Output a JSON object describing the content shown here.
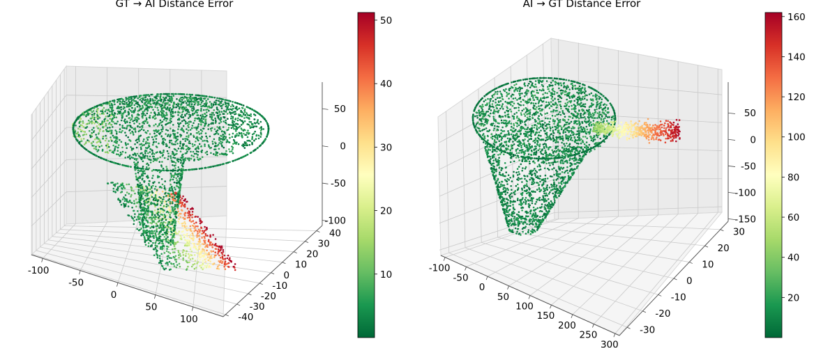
{
  "chart_data": [
    {
      "type": "scatter3d",
      "title": "GT → AI Distance Error",
      "colormap": "RdYlGn_r",
      "colorbar": {
        "min": 0,
        "max": 51.2,
        "ticks": [
          10,
          20,
          30,
          40,
          50
        ]
      },
      "x_ticks": [
        -100,
        -50,
        0,
        50,
        100
      ],
      "y_ticks": [
        -40,
        -30,
        -20,
        -10,
        0,
        10,
        20,
        30,
        40
      ],
      "z_ticks": [
        -100,
        -50,
        0,
        50
      ],
      "xlim": [
        -115,
        140
      ],
      "ylim": [
        -42,
        45
      ],
      "zlim": [
        -150,
        95
      ],
      "grid": true,
      "point_groups": [
        {
          "shape": "mushroom-cap",
          "x_range": [
            -110,
            110
          ],
          "y_range": [
            -30,
            40
          ],
          "z_range": [
            -5,
            60
          ],
          "error_range": [
            0,
            18
          ]
        },
        {
          "shape": "stem",
          "x_range": [
            -20,
            20
          ],
          "y_range": [
            -15,
            15
          ],
          "z_range": [
            -110,
            -5
          ],
          "error_range": [
            0,
            12
          ]
        },
        {
          "shape": "base-ramp",
          "x_range": [
            -20,
            120
          ],
          "y_range": [
            -35,
            35
          ],
          "z_range": [
            -130,
            -100
          ],
          "error_range": [
            0,
            51
          ]
        }
      ]
    },
    {
      "type": "scatter3d",
      "title": "AI → GT Distance Error",
      "colormap": "RdYlGn_r",
      "colorbar": {
        "min": 0,
        "max": 162,
        "ticks": [
          20,
          40,
          60,
          80,
          100,
          120,
          140,
          160
        ]
      },
      "x_ticks": [
        -100,
        -50,
        0,
        50,
        100,
        150,
        200,
        250,
        300
      ],
      "y_ticks": [
        -30,
        -20,
        -10,
        0,
        10,
        20,
        30
      ],
      "z_ticks": [
        -150,
        -100,
        -50,
        0,
        50
      ],
      "xlim": [
        -110,
        310
      ],
      "ylim": [
        -35,
        35
      ],
      "zlim": [
        -160,
        95
      ],
      "grid": true,
      "point_groups": [
        {
          "shape": "body",
          "x_range": [
            -100,
            100
          ],
          "y_range": [
            -30,
            30
          ],
          "z_range": [
            -140,
            60
          ],
          "error_range": [
            0,
            30
          ]
        },
        {
          "shape": "protrusion",
          "x_range": [
            100,
            300
          ],
          "y_range": [
            -20,
            20
          ],
          "z_range": [
            -30,
            30
          ],
          "error_range": [
            40,
            160
          ]
        }
      ]
    }
  ]
}
